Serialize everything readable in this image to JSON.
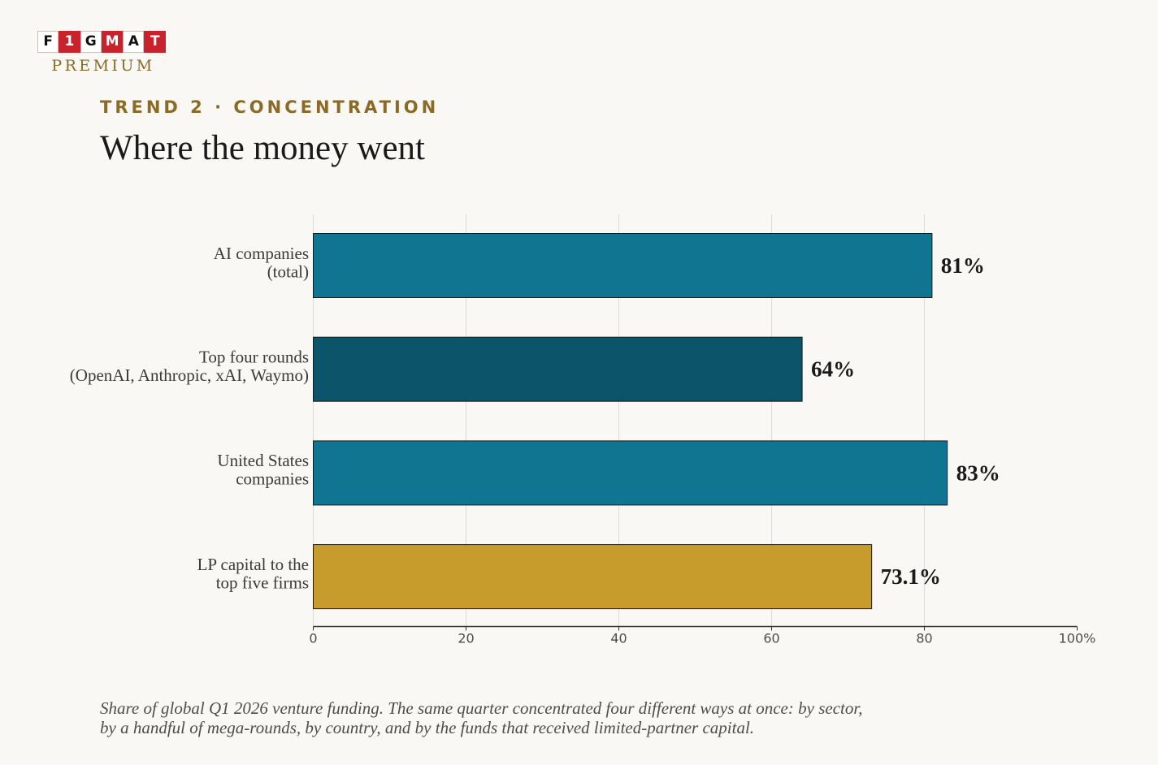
{
  "brand": {
    "letters": [
      "F",
      "1",
      "G",
      "M",
      "A",
      "T"
    ],
    "subtitle": "PREMIUM",
    "colors": {
      "dark_tile": "#c8232c",
      "light_tile": "#ffffff",
      "accent": "#8a6a25"
    }
  },
  "header": {
    "kicker": "TREND 2 · CONCENTRATION",
    "title": "Where the money went"
  },
  "chart_data": {
    "type": "bar",
    "orientation": "horizontal",
    "categories": [
      [
        "AI companies",
        "(total)"
      ],
      [
        "Top four rounds",
        "(OpenAI, Anthropic, xAI, Waymo)"
      ],
      [
        "United States",
        "companies"
      ],
      [
        "LP capital to the",
        "top five firms"
      ]
    ],
    "values": [
      81,
      64,
      83,
      73.1
    ],
    "value_labels": [
      "81%",
      "64%",
      "83%",
      "73.1%"
    ],
    "bar_colors": [
      "#107591",
      "#0b5469",
      "#107591",
      "#c89b2d"
    ],
    "xlim": [
      0,
      100
    ],
    "xticks": [
      0,
      20,
      40,
      60,
      80,
      100
    ],
    "xtick_labels": [
      "0",
      "20",
      "40",
      "60",
      "80",
      "100%"
    ],
    "grid": true,
    "legend": "none"
  },
  "caption": "Share of global Q1 2026 venture funding. The same quarter concentrated four different ways at once: by sector, by a handful of mega-rounds, by country, and by the funds that received limited-partner capital."
}
